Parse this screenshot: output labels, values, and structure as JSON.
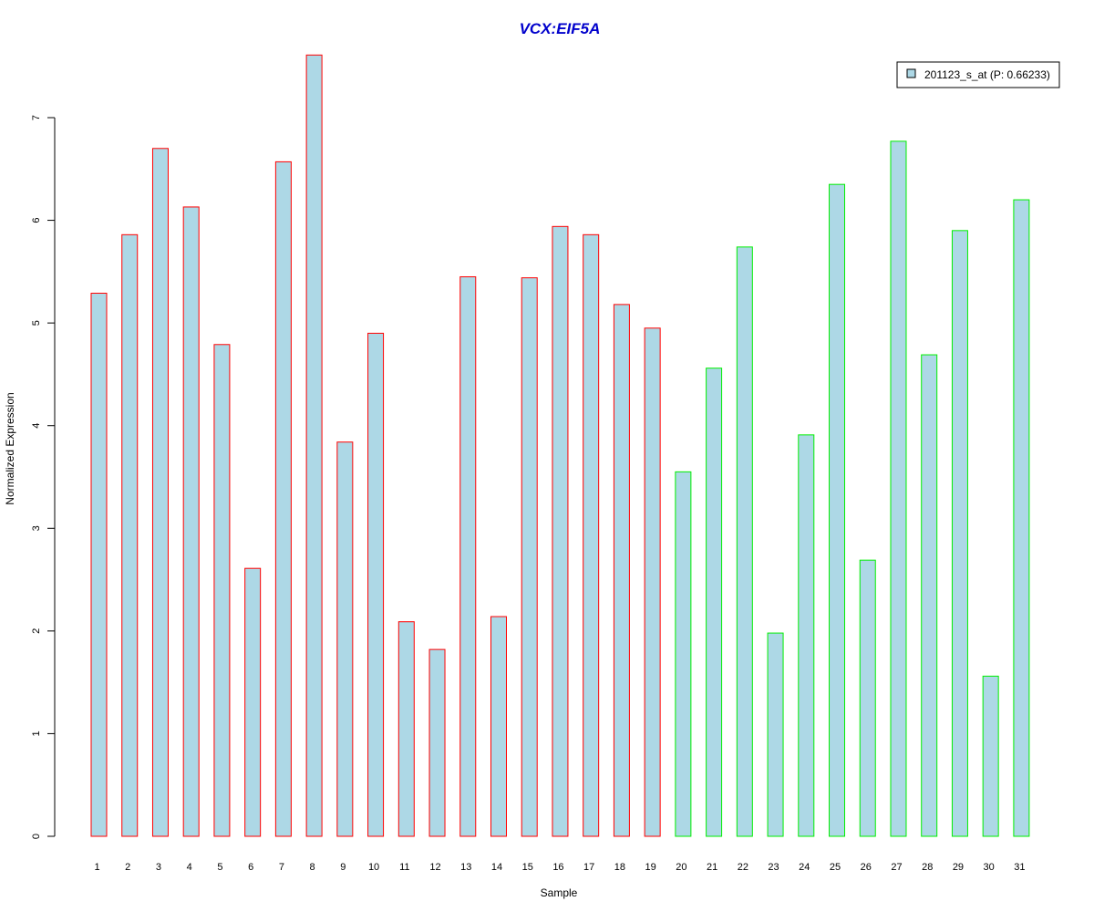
{
  "colors": {
    "title": "#0000cc",
    "bar_fill": "#add8e6",
    "group1_border": "#ff0000",
    "group2_border": "#00ee00"
  },
  "chart_data": {
    "type": "bar",
    "title": "VCX:EIF5A",
    "xlabel": "Sample",
    "ylabel": "Normalized Expression",
    "ylim": [
      0,
      7.6
    ],
    "yticks": [
      0,
      1,
      2,
      3,
      4,
      5,
      6,
      7
    ],
    "grid": false,
    "legend_position": "top-right",
    "legend": [
      "201123_s_at (P: 0.66233)"
    ],
    "categories": [
      "1",
      "2",
      "3",
      "4",
      "5",
      "6",
      "7",
      "8",
      "9",
      "10",
      "11",
      "12",
      "13",
      "14",
      "15",
      "16",
      "17",
      "18",
      "19",
      "20",
      "21",
      "22",
      "23",
      "24",
      "25",
      "26",
      "27",
      "28",
      "29",
      "30",
      "31"
    ],
    "values": [
      5.29,
      5.86,
      6.7,
      6.13,
      4.79,
      2.61,
      6.57,
      7.61,
      3.84,
      4.9,
      2.09,
      1.82,
      5.45,
      2.14,
      5.44,
      5.94,
      5.86,
      5.18,
      4.95,
      3.55,
      4.56,
      5.74,
      1.98,
      3.91,
      6.35,
      2.69,
      6.77,
      4.69,
      5.9,
      1.56,
      6.2
    ],
    "groups": [
      "1",
      "1",
      "1",
      "1",
      "1",
      "1",
      "1",
      "1",
      "1",
      "1",
      "1",
      "1",
      "1",
      "1",
      "1",
      "1",
      "1",
      "1",
      "1",
      "2",
      "2",
      "2",
      "2",
      "2",
      "2",
      "2",
      "2",
      "2",
      "2",
      "2",
      "2"
    ]
  }
}
